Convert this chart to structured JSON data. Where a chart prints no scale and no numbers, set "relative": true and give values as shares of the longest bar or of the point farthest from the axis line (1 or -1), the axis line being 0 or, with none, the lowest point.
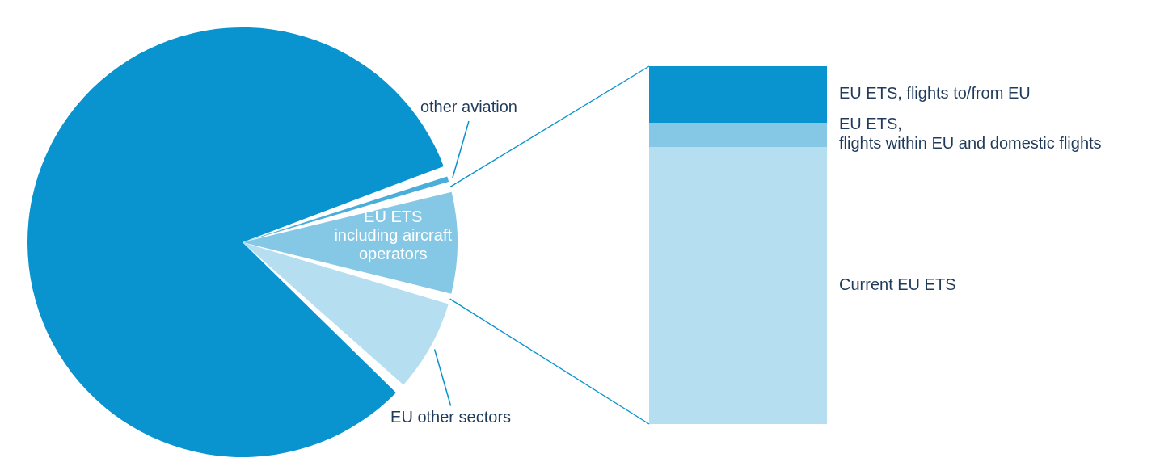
{
  "chart_data": [
    {
      "type": "pie",
      "categories": [
        null,
        "other aviation",
        "EU ETS\nincluding aircraft\noperators",
        "EU other sectors"
      ],
      "values": [
        82.7,
        1.2,
        8.4,
        7.7
      ],
      "colors": [
        "#0994cf",
        "#4aaedb",
        "#85c8e6",
        "#b5def0"
      ]
    },
    {
      "type": "bar",
      "relative": true,
      "stacked": true,
      "categories": [
        null
      ],
      "series": [
        {
          "name": "Current EU ETS",
          "color": "#b5def0",
          "values": [
            0.774
          ]
        },
        {
          "name": "EU ETS,\nflights within EU and domestic flights",
          "color": "#85c8e6",
          "values": [
            0.068
          ]
        },
        {
          "name": "EU ETS, flights to/from EU",
          "color": "#0994cf",
          "values": [
            0.158
          ]
        }
      ]
    }
  ]
}
